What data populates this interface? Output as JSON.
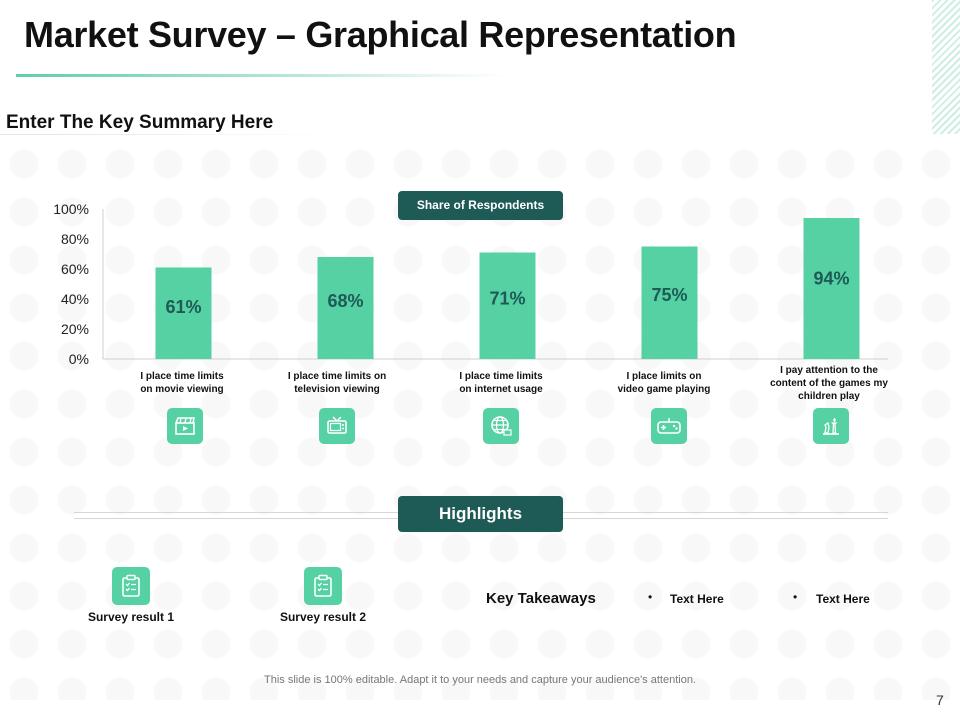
{
  "title": "Market Survey – Graphical Representation",
  "subtitle": "Enter The Key Summary Here",
  "legend_label": "Share of Respondents",
  "chart_data": {
    "type": "bar",
    "title": "",
    "series": [
      {
        "name": "Share of Respondents",
        "values": [
          61,
          68,
          71,
          75,
          94
        ]
      }
    ],
    "categories": [
      "I place time limits on movie viewing",
      "I place time limits on television viewing",
      "I place time limits on internet usage",
      "I place limits on video game playing",
      "I pay attention to the content of the games my children play"
    ],
    "values": [
      61,
      68,
      71,
      75,
      94
    ],
    "value_labels": [
      "61%",
      "68%",
      "71%",
      "75%",
      "94%"
    ],
    "yticks": [
      "0%",
      "20%",
      "40%",
      "60%",
      "80%",
      "100%"
    ],
    "ylim": [
      0,
      100
    ],
    "xlabel": "",
    "ylabel": "",
    "bar_color": "#55d1a3",
    "label_color": "#1e5a56"
  },
  "category_lines": [
    [
      "I place time limits",
      "on movie viewing"
    ],
    [
      "I place time limits on",
      "television viewing"
    ],
    [
      "I place time limits",
      "on internet usage"
    ],
    [
      "I place limits on",
      "video game playing"
    ],
    [
      "I pay attention to the",
      "content of the games my",
      "children play"
    ]
  ],
  "category_icons": [
    "clapperboard-icon",
    "television-icon",
    "globe-icon",
    "gamepad-icon",
    "chess-icon"
  ],
  "highlights": {
    "label": "Highlights",
    "results": [
      {
        "label": "Survey result 1",
        "icon": "clipboard-icon"
      },
      {
        "label": "Survey result 2",
        "icon": "clipboard-icon"
      }
    ],
    "key_takeaways_label": "Key Takeaways",
    "bullets": [
      "Text Here",
      "Text Here"
    ],
    "bullet_char": "•"
  },
  "footer": "This slide is 100% editable. Adapt it to your needs and capture your audience's attention.",
  "page_number": "7",
  "colors": {
    "accent": "#55d1a3",
    "dark": "#1e5a56"
  }
}
